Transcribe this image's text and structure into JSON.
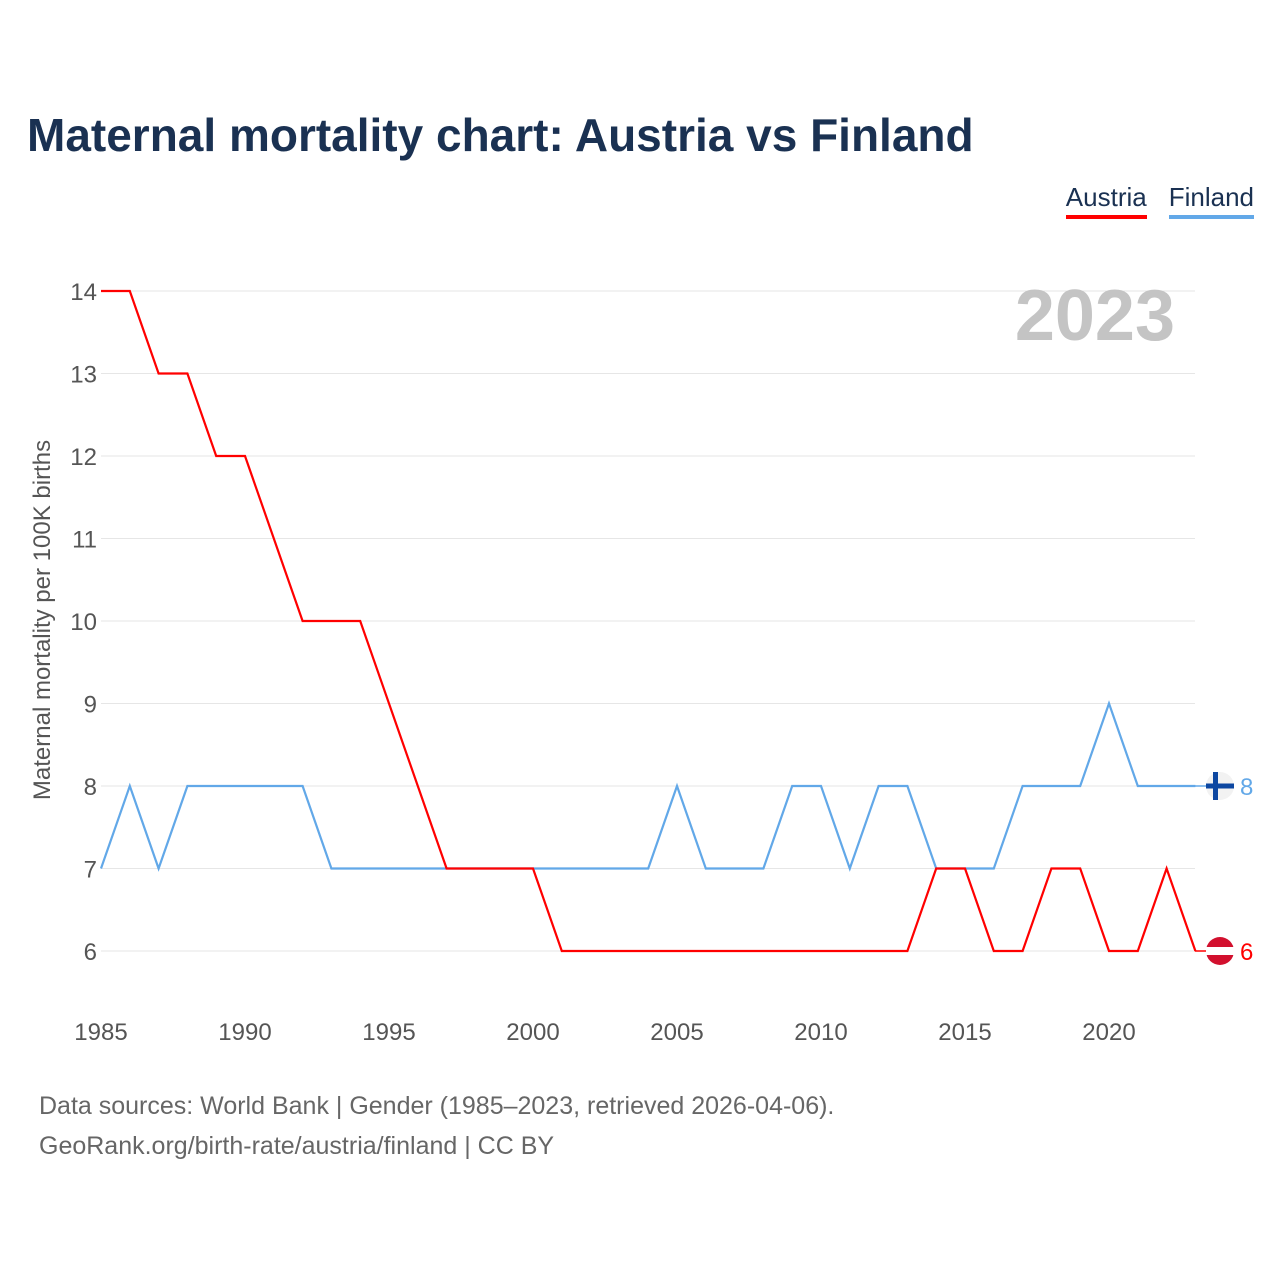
{
  "title": "Maternal mortality chart: Austria vs Finland",
  "year_label": "2023",
  "footer": {
    "line1": "Data sources: World Bank | Gender (1985–2023, retrieved 2026-04-06).",
    "line2": "GeoRank.org/birth-rate/austria/finland | CC BY"
  },
  "chart_data": {
    "type": "line",
    "title": "Maternal mortality chart: Austria vs Finland",
    "xlabel": "",
    "ylabel": "Maternal mortality per 100K births",
    "xlim": [
      1985,
      2023
    ],
    "ylim": [
      6,
      14
    ],
    "x_ticks": [
      "1985",
      "1990",
      "1995",
      "2000",
      "2005",
      "2010",
      "2015",
      "2020"
    ],
    "y_ticks": [
      "6",
      "7",
      "8",
      "9",
      "10",
      "11",
      "12",
      "13",
      "14"
    ],
    "legend_position": "top-right",
    "x": [
      1985,
      1986,
      1987,
      1988,
      1989,
      1990,
      1991,
      1992,
      1993,
      1994,
      1995,
      1996,
      1997,
      1998,
      1999,
      2000,
      2001,
      2002,
      2003,
      2004,
      2005,
      2006,
      2007,
      2008,
      2009,
      2010,
      2011,
      2012,
      2013,
      2014,
      2015,
      2016,
      2017,
      2018,
      2019,
      2020,
      2021,
      2022,
      2023
    ],
    "series": [
      {
        "name": "Austria",
        "color": "#ff0000",
        "end_label": "6",
        "values": [
          14,
          14,
          13,
          13,
          12,
          12,
          11,
          10,
          10,
          10,
          9,
          8,
          7,
          7,
          7,
          7,
          6,
          6,
          6,
          6,
          6,
          6,
          6,
          6,
          6,
          6,
          6,
          6,
          6,
          7,
          7,
          6,
          6,
          7,
          7,
          6,
          6,
          7,
          6
        ]
      },
      {
        "name": "Finland",
        "color": "#62a8e8",
        "end_label": "8",
        "values": [
          7,
          8,
          7,
          8,
          8,
          8,
          8,
          8,
          7,
          7,
          7,
          7,
          7,
          7,
          7,
          7,
          7,
          7,
          7,
          7,
          8,
          7,
          7,
          7,
          8,
          8,
          7,
          8,
          8,
          7,
          7,
          7,
          8,
          8,
          8,
          9,
          8,
          8,
          8
        ]
      }
    ]
  }
}
